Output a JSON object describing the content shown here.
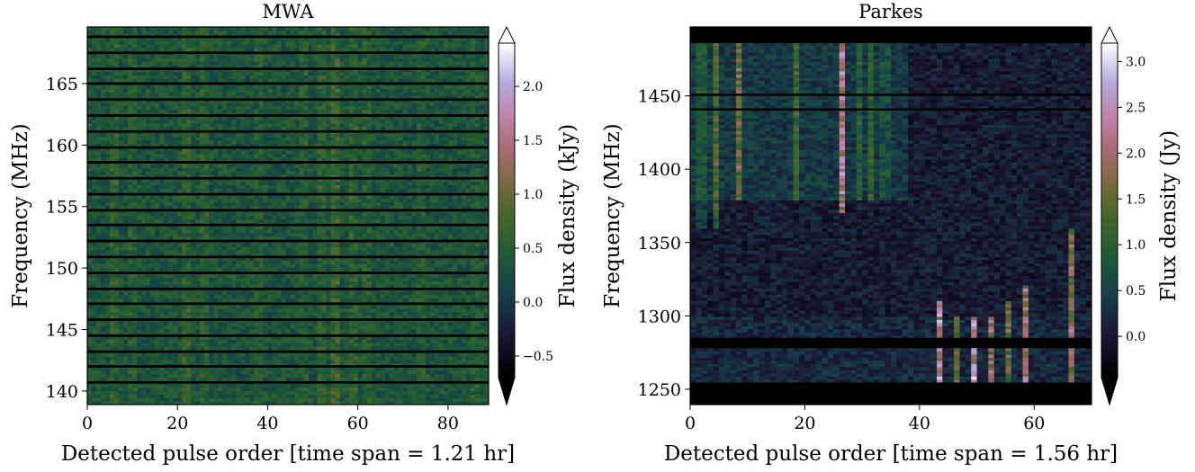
{
  "chart_data": [
    {
      "type": "heatmap",
      "title": "MWA",
      "xlabel": "Detected pulse order [time span = 1.21 hr]",
      "ylabel": "Frequency (MHz)",
      "xlim": [
        0,
        89
      ],
      "ylim": [
        138.9,
        169.6
      ],
      "xticks": [
        0,
        20,
        40,
        60,
        80
      ],
      "xtick_labels": [
        "0",
        "20",
        "40",
        "60",
        "80"
      ],
      "yticks": [
        140,
        145,
        150,
        155,
        160,
        165
      ],
      "ytick_labels": [
        "140",
        "145",
        "150",
        "155",
        "160",
        "165"
      ],
      "colorbar": {
        "label": "Flux density (kJy)",
        "vmin": -0.7,
        "vmax": 2.4,
        "extend": "both",
        "ticks": [
          -0.5,
          0.0,
          0.5,
          1.0,
          1.5,
          2.0
        ],
        "tick_labels": [
          "−0.5",
          "0.0",
          "0.5",
          "1.0",
          "1.5",
          "2.0"
        ]
      },
      "colormap": "cubehelix",
      "flagged_channel_bands_MHz": [
        [
          140.6,
          140.8
        ],
        [
          141.9,
          142.1
        ],
        [
          143.1,
          143.3
        ],
        [
          144.4,
          144.6
        ],
        [
          145.7,
          145.9
        ],
        [
          147.0,
          147.2
        ],
        [
          148.2,
          148.4
        ],
        [
          149.5,
          149.7
        ],
        [
          150.8,
          151.0
        ],
        [
          152.1,
          152.3
        ],
        [
          153.4,
          153.6
        ],
        [
          154.6,
          154.8
        ],
        [
          155.9,
          156.1
        ],
        [
          157.2,
          157.4
        ],
        [
          158.5,
          158.7
        ],
        [
          159.7,
          159.9
        ],
        [
          161.0,
          161.2
        ],
        [
          162.3,
          162.5
        ],
        [
          163.6,
          163.8
        ],
        [
          164.9,
          165.1
        ],
        [
          166.1,
          166.3
        ],
        [
          167.4,
          167.6
        ],
        [
          168.7,
          168.9
        ]
      ],
      "bright_pulses": [
        {
          "x": 6,
          "amp": 0.45,
          "fmin": 139,
          "fmax": 169.6
        },
        {
          "x": 10,
          "amp": 0.3,
          "fmin": 139,
          "fmax": 169.6
        },
        {
          "x": 22,
          "amp": 0.55,
          "fmin": 139,
          "fmax": 169.6
        },
        {
          "x": 26,
          "amp": 0.45,
          "fmin": 139,
          "fmax": 169.6
        },
        {
          "x": 38,
          "amp": 0.3,
          "fmin": 139,
          "fmax": 169.6
        },
        {
          "x": 48,
          "amp": 0.35,
          "fmin": 139,
          "fmax": 169.6
        },
        {
          "x": 52,
          "amp": 0.45,
          "fmin": 139,
          "fmax": 169.6
        },
        {
          "x": 55,
          "amp": 0.7,
          "fmin": 139,
          "fmax": 169.6
        },
        {
          "x": 59,
          "amp": 0.45,
          "fmin": 139,
          "fmax": 169.6
        },
        {
          "x": 62,
          "amp": 0.35,
          "fmin": 139,
          "fmax": 169.6
        },
        {
          "x": 74,
          "amp": 0.3,
          "fmin": 139,
          "fmax": 169.6
        },
        {
          "x": 86,
          "amp": 0.25,
          "fmin": 139,
          "fmax": 169.6
        }
      ]
    },
    {
      "type": "heatmap",
      "title": "Parkes",
      "xlabel": "Detected pulse order [time span = 1.56 hr]",
      "ylabel": "Frequency (MHz)",
      "xlim": [
        0,
        70
      ],
      "ylim": [
        1239.5,
        1497.0
      ],
      "xticks": [
        0,
        20,
        40,
        60
      ],
      "xtick_labels": [
        "0",
        "20",
        "40",
        "60"
      ],
      "yticks": [
        1250,
        1300,
        1350,
        1400,
        1450
      ],
      "ytick_labels": [
        "1250",
        "1300",
        "1350",
        "1400",
        "1450"
      ],
      "colorbar": {
        "label": "Flux density (Jy)",
        "vmin": -0.45,
        "vmax": 3.2,
        "extend": "both",
        "ticks": [
          0.0,
          0.5,
          1.0,
          1.5,
          2.0,
          2.5,
          3.0
        ],
        "tick_labels": [
          "0.0",
          "0.5",
          "1.0",
          "1.5",
          "2.0",
          "2.5",
          "3.0"
        ]
      },
      "colormap": "cubehelix",
      "flagged_channel_bands_MHz": [
        [
          1239.5,
          1254.5
        ],
        [
          1278.0,
          1285.0
        ],
        [
          1450.0,
          1451.5
        ],
        [
          1440.0,
          1441.5
        ],
        [
          1486.0,
          1497.0
        ]
      ],
      "bright_pulses": [
        {
          "x": 2,
          "amp": 0.9,
          "fmin": 1360,
          "fmax": 1486
        },
        {
          "x": 4.5,
          "amp": 1.2,
          "fmin": 1360,
          "fmax": 1486
        },
        {
          "x": 8.5,
          "amp": 1.5,
          "fmin": 1380,
          "fmax": 1486
        },
        {
          "x": 18.5,
          "amp": 1.0,
          "fmin": 1380,
          "fmax": 1486
        },
        {
          "x": 26.5,
          "amp": 2.3,
          "fmin": 1370,
          "fmax": 1486
        },
        {
          "x": 29.5,
          "amp": 0.7,
          "fmin": 1380,
          "fmax": 1486
        },
        {
          "x": 31.5,
          "amp": 0.8,
          "fmin": 1380,
          "fmax": 1486
        },
        {
          "x": 34,
          "amp": 0.7,
          "fmin": 1380,
          "fmax": 1486
        },
        {
          "x": 43.5,
          "amp": 2.6,
          "fmin": 1254,
          "fmax": 1310
        },
        {
          "x": 46.5,
          "amp": 1.6,
          "fmin": 1254,
          "fmax": 1300
        },
        {
          "x": 49.5,
          "amp": 3.0,
          "fmin": 1254,
          "fmax": 1300
        },
        {
          "x": 52.5,
          "amp": 2.0,
          "fmin": 1254,
          "fmax": 1300
        },
        {
          "x": 55.5,
          "amp": 1.7,
          "fmin": 1254,
          "fmax": 1310
        },
        {
          "x": 58.5,
          "amp": 2.4,
          "fmin": 1254,
          "fmax": 1320
        },
        {
          "x": 66.5,
          "amp": 2.2,
          "fmin": 1254,
          "fmax": 1360
        }
      ]
    }
  ]
}
